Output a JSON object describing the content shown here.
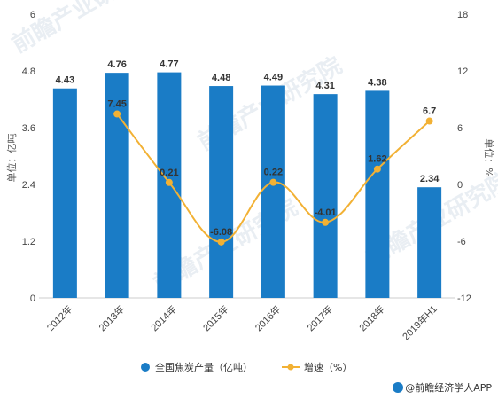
{
  "chart_data": {
    "type": "bar+line",
    "categories": [
      "2012年",
      "2013年",
      "2014年",
      "2015年",
      "2016年",
      "2017年",
      "2018年",
      "2019年H1"
    ],
    "series": [
      {
        "name": "全国焦炭产量（亿吨）",
        "type": "bar",
        "axis": "left",
        "color": "#1a7cc6",
        "values": [
          4.43,
          4.76,
          4.77,
          4.48,
          4.49,
          4.31,
          4.38,
          2.34
        ]
      },
      {
        "name": "增速（%）",
        "type": "line",
        "axis": "right",
        "color": "#f2b134",
        "values": [
          null,
          7.45,
          0.21,
          -6.08,
          0.22,
          -4.01,
          1.62,
          6.7
        ]
      }
    ],
    "y_left": {
      "label": "单位：亿吨",
      "ylim": [
        0,
        6
      ],
      "ticks": [
        "0",
        "1.2",
        "2.4",
        "3.6",
        "4.8",
        "6"
      ]
    },
    "y_right": {
      "label": "单位：%",
      "ylim": [
        -12,
        18
      ],
      "ticks": [
        "-12",
        "-6",
        "0",
        "6",
        "12",
        "18"
      ]
    },
    "grid": false,
    "legend_position": "bottom"
  },
  "source": "@前瞻经济学人APP",
  "watermark": "前瞻产业研究院"
}
